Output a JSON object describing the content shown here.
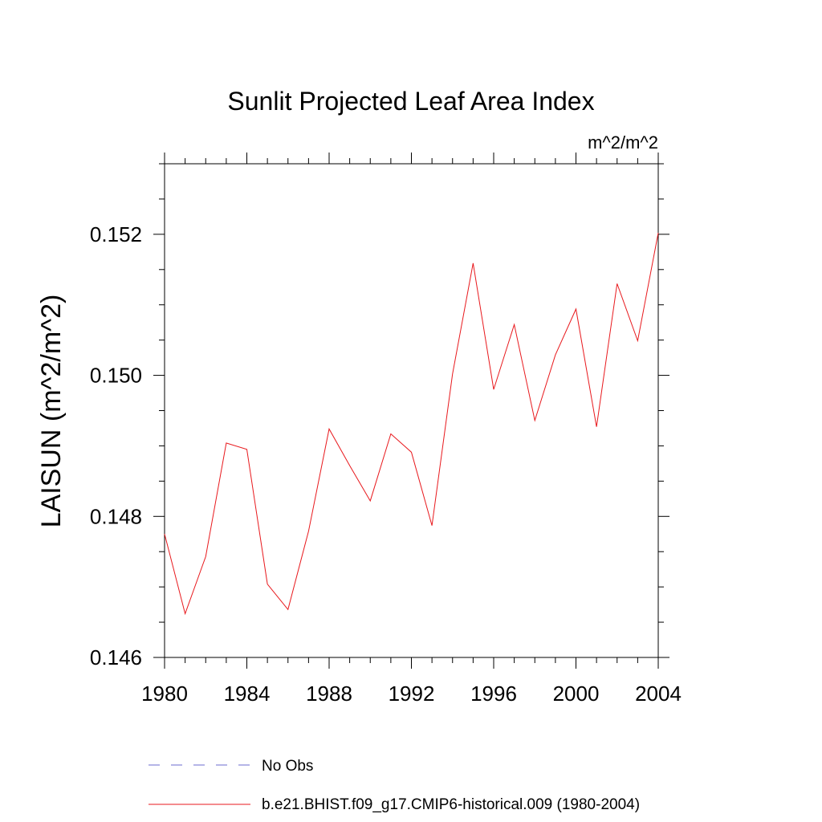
{
  "chart_data": {
    "type": "line",
    "title": "Sunlit Projected Leaf Area Index",
    "units_label": "m^2/m^2",
    "ylabel": "LAISUN  (m^2/m^2)",
    "xlabel": "",
    "xlim": [
      1980,
      2004
    ],
    "ylim": [
      0.146,
      0.153
    ],
    "x_ticks": [
      "1980",
      "1984",
      "1988",
      "1992",
      "1996",
      "2000",
      "2004"
    ],
    "y_ticks": [
      "0.146",
      "0.148",
      "0.150",
      "0.152"
    ],
    "grid": false,
    "legend_position": "bottom",
    "x": [
      1980,
      1981,
      1982,
      1983,
      1984,
      1985,
      1986,
      1987,
      1988,
      1989,
      1990,
      1991,
      1992,
      1993,
      1994,
      1995,
      1996,
      1997,
      1998,
      1999,
      2000,
      2001,
      2002,
      2003,
      2004
    ],
    "series": [
      {
        "name": "b.e21.BHIST.f09_g17.CMIP6-historical.009 (1980-2004)",
        "color": "#e8191d",
        "dash": "solid",
        "values": [
          0.14775,
          0.14662,
          0.14743,
          0.14904,
          0.14895,
          0.14704,
          0.14668,
          0.14779,
          0.14924,
          0.14872,
          0.14822,
          0.14917,
          0.14891,
          0.14787,
          0.15002,
          0.15159,
          0.1498,
          0.15072,
          0.14936,
          0.15029,
          0.15094,
          0.14927,
          0.1513,
          0.15049,
          0.15202
        ]
      }
    ],
    "legend": [
      {
        "label": "No Obs",
        "color": "#6b6bcf",
        "dash": "dashed"
      },
      {
        "label": "b.e21.BHIST.f09_g17.CMIP6-historical.009 (1980-2004)",
        "color": "#e8191d",
        "dash": "solid"
      }
    ]
  }
}
